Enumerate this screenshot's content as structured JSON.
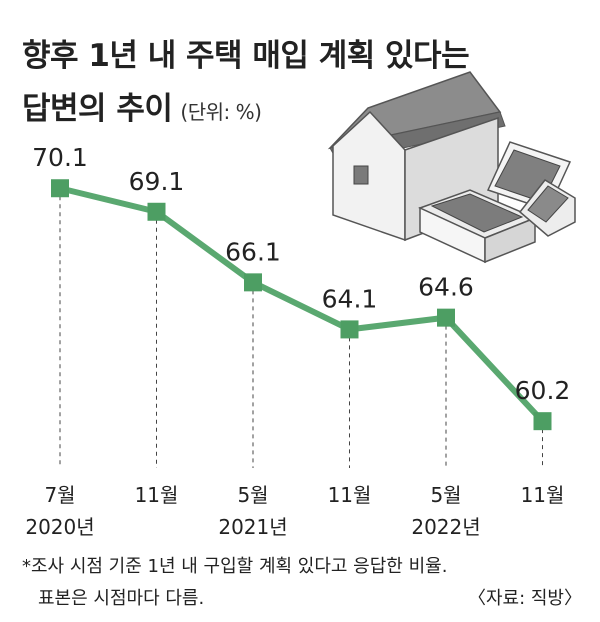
{
  "header": {
    "title_line1": "향후 1년 내 주택 매입 계획 있다는",
    "title_line2": "답변의 추이",
    "unit": "(단위: %)"
  },
  "footer": {
    "note_line1": "*조사 시점 기준 1년 내 구입할 계획 있다고 응답한 비율.",
    "note_line2": "표본은 시점마다 다름.",
    "source": "〈자료: 직방〉"
  },
  "colors": {
    "line": "#5aa870",
    "marker": "#4d9e63",
    "text": "#222222",
    "house_roof": "#8c8c8c",
    "house_wall": "#f1f1f1"
  },
  "illustration": "house-and-money-illustration",
  "chart_data": {
    "type": "line",
    "categories": [
      "7월\n2020년",
      "11월",
      "5월\n2021년",
      "11월",
      "5월\n2022년",
      "11월"
    ],
    "tick_labels": [
      {
        "month": "7월",
        "year": "2020년"
      },
      {
        "month": "11월",
        "year": ""
      },
      {
        "month": "5월",
        "year": "2021년"
      },
      {
        "month": "11월",
        "year": ""
      },
      {
        "month": "5월",
        "year": "2022년"
      },
      {
        "month": "11월",
        "year": ""
      }
    ],
    "values": [
      70.1,
      69.1,
      66.1,
      64.1,
      64.6,
      60.2
    ],
    "value_labels": [
      "70.1",
      "69.1",
      "66.1",
      "64.1",
      "64.6",
      "60.2"
    ],
    "ylim": [
      56,
      73
    ],
    "grid": false,
    "drop_lines": true,
    "legend": "none"
  }
}
